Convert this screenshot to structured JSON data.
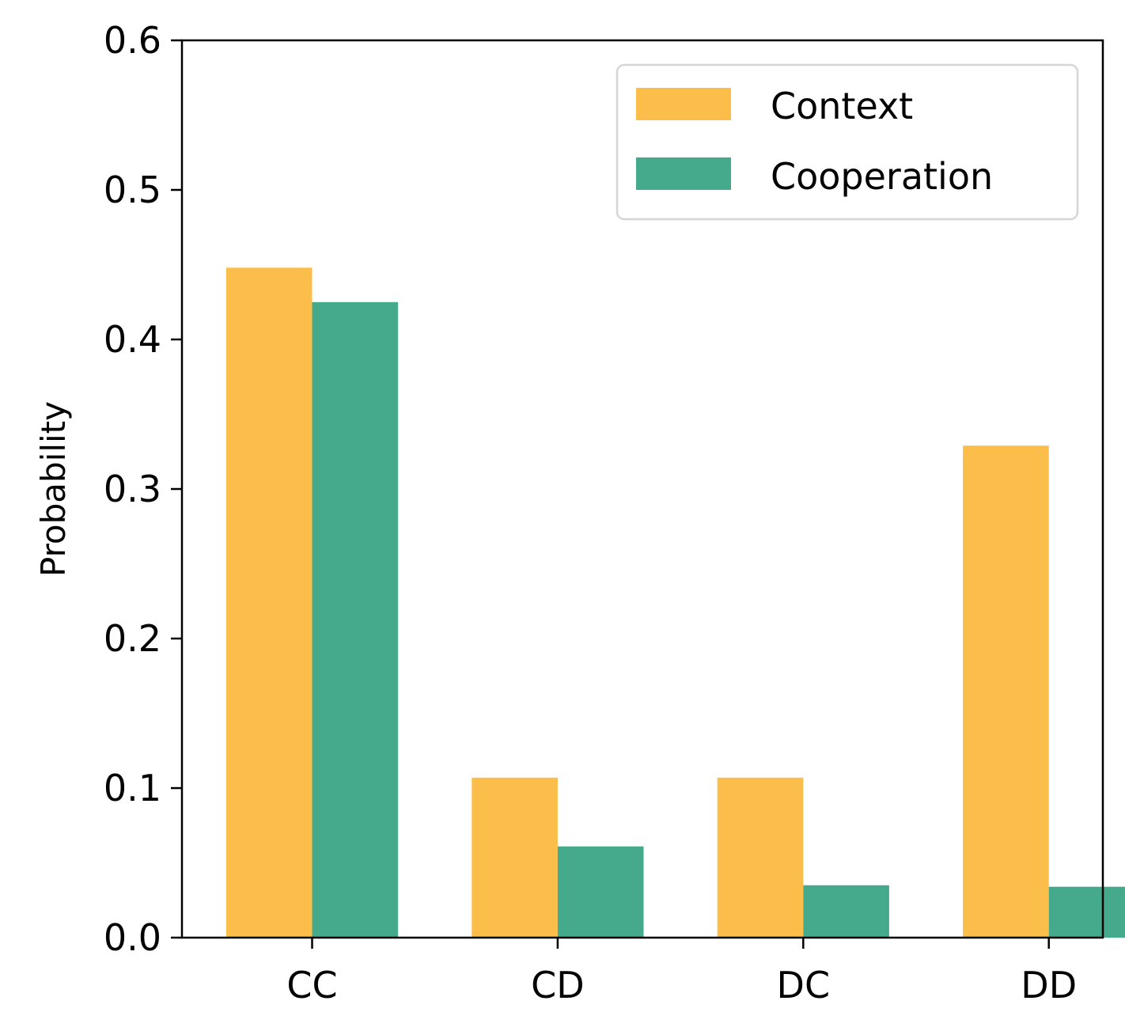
{
  "chart_data": {
    "type": "bar",
    "title": "",
    "xlabel": "",
    "ylabel": "Probability",
    "categories": [
      "CC",
      "CD",
      "DC",
      "DD"
    ],
    "series": [
      {
        "name": "Context",
        "color": "#FBBE4A",
        "values": [
          0.448,
          0.107,
          0.107,
          0.329
        ]
      },
      {
        "name": "Cooperation",
        "color": "#44AA8B",
        "values": [
          0.425,
          0.061,
          0.035,
          0.034
        ]
      }
    ],
    "ylim": [
      0.0,
      0.6
    ],
    "yticks": [
      "0.0",
      "0.1",
      "0.2",
      "0.3",
      "0.4",
      "0.5",
      "0.6"
    ],
    "grid": false,
    "legend_position": "top-right"
  }
}
